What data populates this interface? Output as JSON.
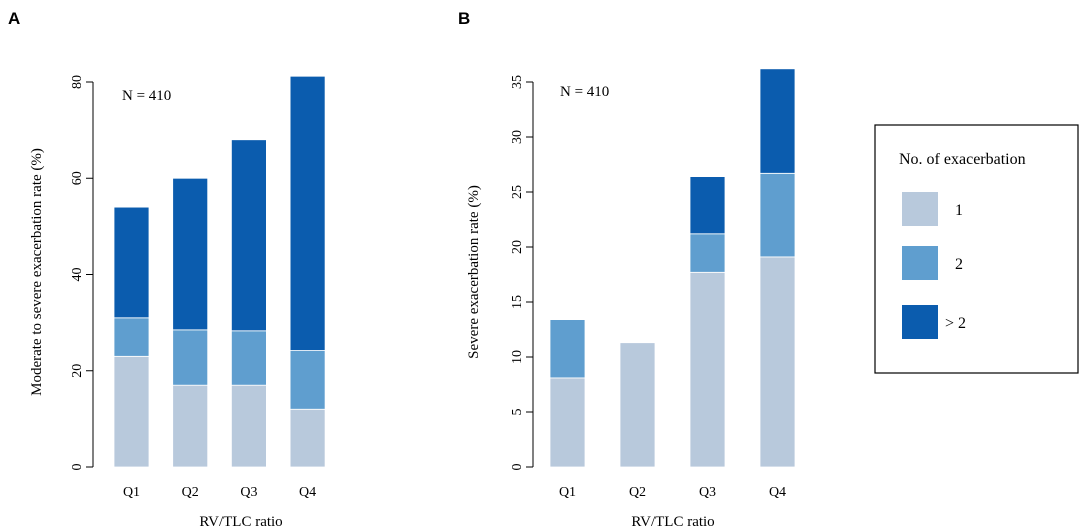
{
  "colors": {
    "one": "#b8c9dc",
    "two": "#5f9ecf",
    "more": "#0b5cae",
    "segment_border": "#ffffff",
    "axis": "#000000"
  },
  "legend": {
    "title": "No. of exacerbation",
    "entries": [
      {
        "key": "one",
        "label": "1"
      },
      {
        "key": "two",
        "label": "2"
      },
      {
        "key": "more",
        "label": "> 2"
      }
    ]
  },
  "chart_data": [
    {
      "type": "bar",
      "stacked": true,
      "panel": "A",
      "annotation": "N = 410",
      "xlabel": "RV/TLC ratio",
      "ylabel": "Moderate to severe exacerbation rate (%)",
      "categories": [
        "Q1",
        "Q2",
        "Q3",
        "Q4"
      ],
      "ylim": [
        0,
        80
      ],
      "yticks": [
        0,
        20,
        40,
        60,
        80
      ],
      "series": [
        {
          "name": "1",
          "key": "one",
          "values": [
            23,
            17,
            17,
            12
          ]
        },
        {
          "name": "2",
          "key": "two",
          "values": [
            8,
            11.5,
            11.3,
            12.2
          ]
        },
        {
          "name": "> 2",
          "key": "more",
          "values": [
            23,
            31.5,
            39.7,
            57
          ]
        }
      ]
    },
    {
      "type": "bar",
      "stacked": true,
      "panel": "B",
      "annotation": "N = 410",
      "xlabel": "RV/TLC ratio",
      "ylabel": "Severe exacerbation rate (%)",
      "categories": [
        "Q1",
        "Q2",
        "Q3",
        "Q4"
      ],
      "ylim": [
        0,
        35
      ],
      "yticks": [
        0,
        5,
        10,
        15,
        20,
        25,
        30,
        35
      ],
      "series": [
        {
          "name": "1",
          "key": "one",
          "values": [
            8.1,
            11.3,
            17.7,
            19.1
          ]
        },
        {
          "name": "2",
          "key": "two",
          "values": [
            5.3,
            0,
            3.5,
            7.6
          ]
        },
        {
          "name": "> 2",
          "key": "more",
          "values": [
            0,
            0,
            5.2,
            9.5
          ]
        }
      ]
    }
  ]
}
